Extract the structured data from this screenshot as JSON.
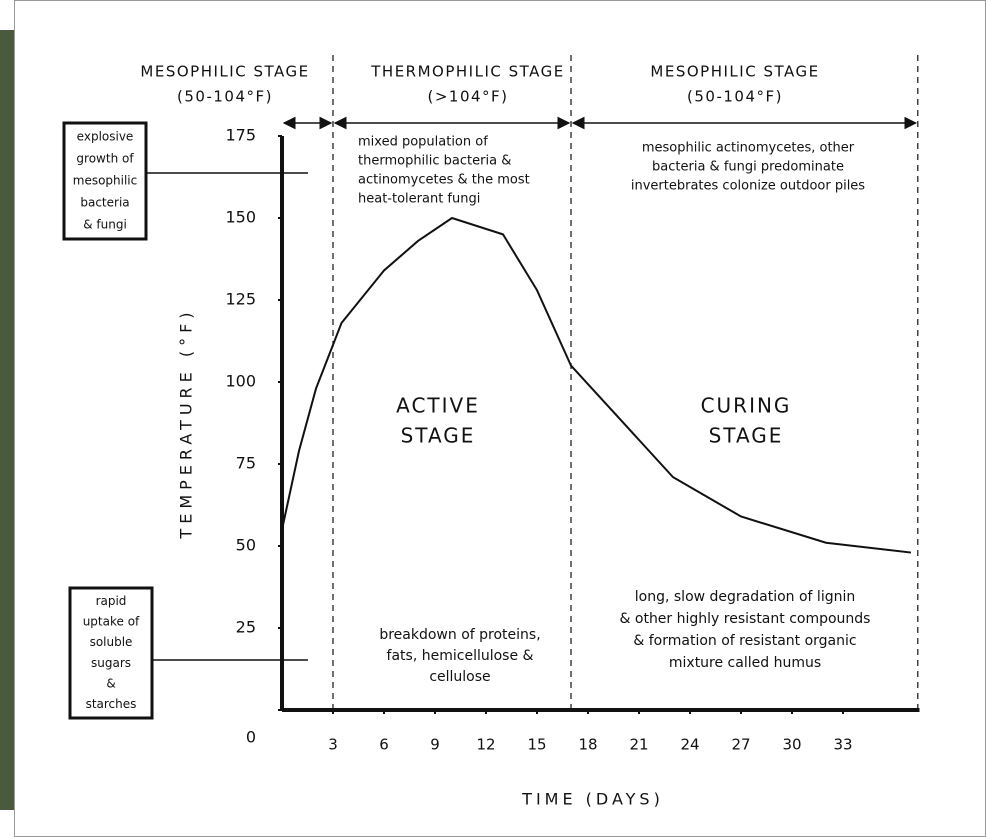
{
  "chart_data": {
    "type": "line",
    "x_label": "TIME (DAYS)",
    "y_label": "TEMPERATURE (°F)",
    "xlim": [
      0,
      37.5
    ],
    "ylim": [
      0,
      175
    ],
    "xticks": [
      3,
      6,
      9,
      12,
      15,
      18,
      21,
      24,
      27,
      30,
      33
    ],
    "yticks": [
      0,
      25,
      50,
      75,
      100,
      125,
      150,
      175
    ],
    "x": [
      0,
      1,
      2,
      3.5,
      6,
      8,
      10,
      13,
      15,
      17,
      20,
      23,
      27,
      32,
      37
    ],
    "series": [
      {
        "color": "#111111",
        "values": [
          55,
          79,
          98,
          118,
          134,
          143,
          150,
          145,
          128,
          105,
          88,
          71,
          59,
          51,
          48
        ]
      }
    ],
    "dividers": [
      3,
      17,
      37.4
    ],
    "stages": [
      {
        "name": "MESOPHILIC STAGE",
        "range": "(50-104°F)"
      },
      {
        "name": "THERMOPHILIC STAGE",
        "range": "(>104°F)"
      },
      {
        "name": "MESOPHILIC STAGE",
        "range": "(50-104°F)"
      }
    ],
    "annotations": [
      {
        "lines": [
          "mixed population of",
          "thermophilic bacteria &",
          "actinomycetes & the most",
          "heat-tolerant fungi"
        ]
      },
      {
        "lines": [
          "mesophilic actinomycetes, other",
          "bacteria & fungi predominate",
          "invertebrates colonize outdoor piles"
        ]
      },
      {
        "lines": [
          "ACTIVE",
          "STAGE"
        ]
      },
      {
        "lines": [
          "CURING",
          "STAGE"
        ]
      },
      {
        "lines": [
          "breakdown of proteins,",
          "fats, hemicellulose &",
          "cellulose"
        ]
      },
      {
        "lines": [
          "long, slow degradation of lignin",
          "& other highly resistant compounds",
          "& formation of resistant organic",
          "mixture called humus"
        ]
      }
    ],
    "side_notes": [
      {
        "lines": [
          "explosive",
          "growth of",
          "mesophilic",
          "bacteria",
          "& fungi"
        ]
      },
      {
        "lines": [
          "rapid",
          "uptake of",
          "soluble",
          "sugars",
          "&",
          "starches"
        ]
      }
    ]
  }
}
